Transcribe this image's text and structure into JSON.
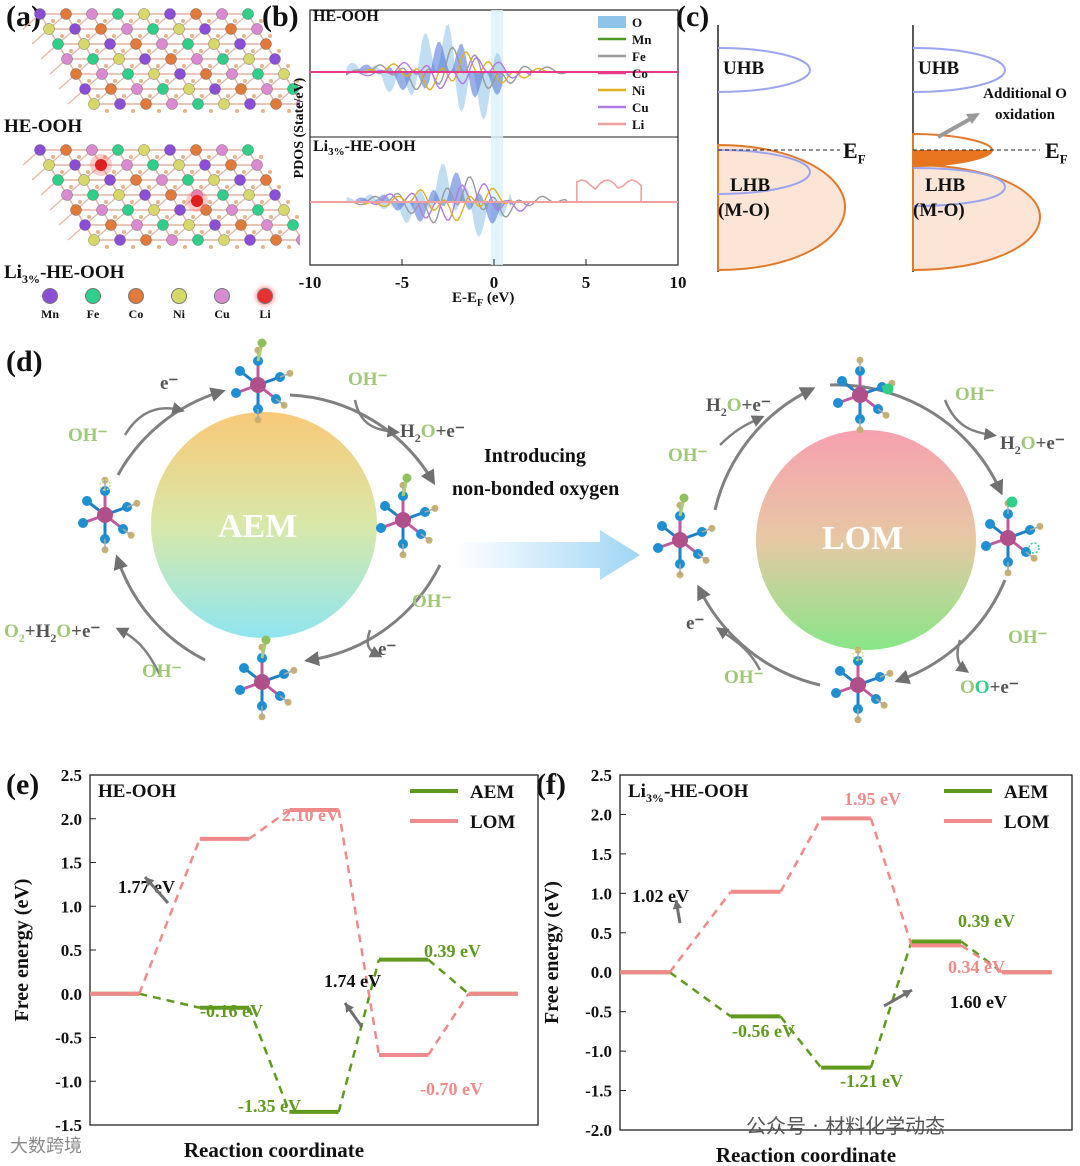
{
  "panels": {
    "a": {
      "label": "(a)",
      "title_top": "HE-OOH",
      "title_bottom": "Li3%-HE-OOH",
      "legend": [
        {
          "name": "Mn",
          "color": "#8a4fd6"
        },
        {
          "name": "Fe",
          "color": "#2fcf8a"
        },
        {
          "name": "Co",
          "color": "#e07a3a"
        },
        {
          "name": "Ni",
          "color": "#d8d86a"
        },
        {
          "name": "Cu",
          "color": "#d98ad0"
        },
        {
          "name": "Li",
          "color": "#e83030"
        }
      ]
    },
    "b": {
      "label": "(b)",
      "ylabel": "PDOS (State/eV)",
      "xlabel": "E-EF (eV)",
      "top_title": "HE-OOH",
      "bottom_title": "Li3%-HE-OOH",
      "xticks": [
        "-10",
        "-5",
        "0",
        "5",
        "10"
      ],
      "legend": [
        {
          "name": "O",
          "color": "#8fc3e8"
        },
        {
          "name": "Mn",
          "color": "#4f9a1e"
        },
        {
          "name": "Fe",
          "color": "#9a9a9a"
        },
        {
          "name": "Co",
          "color": "#e83a8a"
        },
        {
          "name": "Ni",
          "color": "#e0b020"
        },
        {
          "name": "Cu",
          "color": "#b07ae8"
        },
        {
          "name": "Li",
          "color": "#f0a0a0"
        }
      ]
    },
    "c": {
      "label": "(c)",
      "uhb": "UHB",
      "lhb": "LHB",
      "mo": "(M-O)",
      "ef": "EF",
      "note_line1": "Additional O",
      "note_line2": "oxidation"
    },
    "d": {
      "label": "(d)",
      "aem": "AEM",
      "lom": "LOM",
      "arrow_line1": "Introducing",
      "arrow_line2": "non-bonded oxygen",
      "aem_labels": {
        "oh_top": "OH⁻",
        "h2o_e_top": "H2O+e⁻",
        "e_topleft": "e⁻",
        "oh_left": "OH⁻",
        "o2_bottom": "O2+H2O+e⁻",
        "oh_bottomleft": "OH⁻",
        "oh_bottomright": "OH⁻",
        "e_bottomright": "e⁻"
      },
      "lom_labels": {
        "h2o_e_topleft": "H2O+e⁻",
        "oh_left": "OH⁻",
        "oh_topright": "OH⁻",
        "h2o_e_right": "H2O+e⁻",
        "oh_bottomright": "OH⁻",
        "oo_e": "OO+e⁻",
        "e_left": "e⁻",
        "oh_bottomleft": "OH⁻"
      }
    },
    "e": {
      "label": "(e)",
      "title": "HE-OOH"
    },
    "f": {
      "label": "(f)",
      "title": "Li3%-HE-OOH"
    }
  },
  "chart_data": [
    {
      "type": "line",
      "panel": "e",
      "title": "HE-OOH",
      "xlabel": "Reaction coordinate",
      "ylabel": "Free energy (eV)",
      "ylim": [
        -1.5,
        2.5
      ],
      "yticks": [
        "-1.5",
        "-1.0",
        "-0.5",
        "0.0",
        "0.5",
        "1.0",
        "1.5",
        "2.0",
        "2.5"
      ],
      "steps": 5,
      "series": [
        {
          "name": "AEM",
          "color": "#5f9a1e",
          "values": [
            0.0,
            -0.16,
            -1.35,
            0.39,
            0.0
          ]
        },
        {
          "name": "LOM",
          "color": "#f08a8a",
          "values": [
            0.0,
            1.77,
            2.1,
            -0.7,
            0.0
          ]
        }
      ],
      "annotations": [
        {
          "text": "1.77 eV",
          "color": "#111111"
        },
        {
          "text": "2.10 eV",
          "color": "#f08a8a"
        },
        {
          "text": "-0.16 eV",
          "color": "#5f9a1e"
        },
        {
          "text": "-1.35 eV",
          "color": "#5f9a1e"
        },
        {
          "text": "1.74 eV",
          "color": "#111111"
        },
        {
          "text": "0.39 eV",
          "color": "#5f9a1e"
        },
        {
          "text": "-0.70 eV",
          "color": "#f08a8a"
        }
      ]
    },
    {
      "type": "line",
      "panel": "f",
      "title": "Li3%-HE-OOH",
      "xlabel": "Reaction coordinate",
      "ylabel": "Free energy (eV)",
      "ylim": [
        -2.0,
        2.5
      ],
      "yticks": [
        "-2.0",
        "-1.5",
        "-1.0",
        "-0.5",
        "0.0",
        "0.5",
        "1.0",
        "1.5",
        "2.0",
        "2.5"
      ],
      "steps": 5,
      "series": [
        {
          "name": "AEM",
          "color": "#5f9a1e",
          "values": [
            0.0,
            -0.56,
            -1.21,
            0.39,
            0.0
          ]
        },
        {
          "name": "LOM",
          "color": "#f08a8a",
          "values": [
            0.0,
            1.02,
            1.95,
            0.34,
            0.0
          ]
        }
      ],
      "annotations": [
        {
          "text": "1.02 eV",
          "color": "#111111"
        },
        {
          "text": "1.95 eV",
          "color": "#f08a8a"
        },
        {
          "text": "-0.56 eV",
          "color": "#5f9a1e"
        },
        {
          "text": "-1.21 eV",
          "color": "#5f9a1e"
        },
        {
          "text": "0.39 eV",
          "color": "#5f9a1e"
        },
        {
          "text": "0.34 eV",
          "color": "#f08a8a"
        },
        {
          "text": "1.60 eV",
          "color": "#111111"
        }
      ]
    }
  ],
  "watermark": {
    "left": "大数跨境",
    "right": "公众号 · 材料化学动态"
  }
}
